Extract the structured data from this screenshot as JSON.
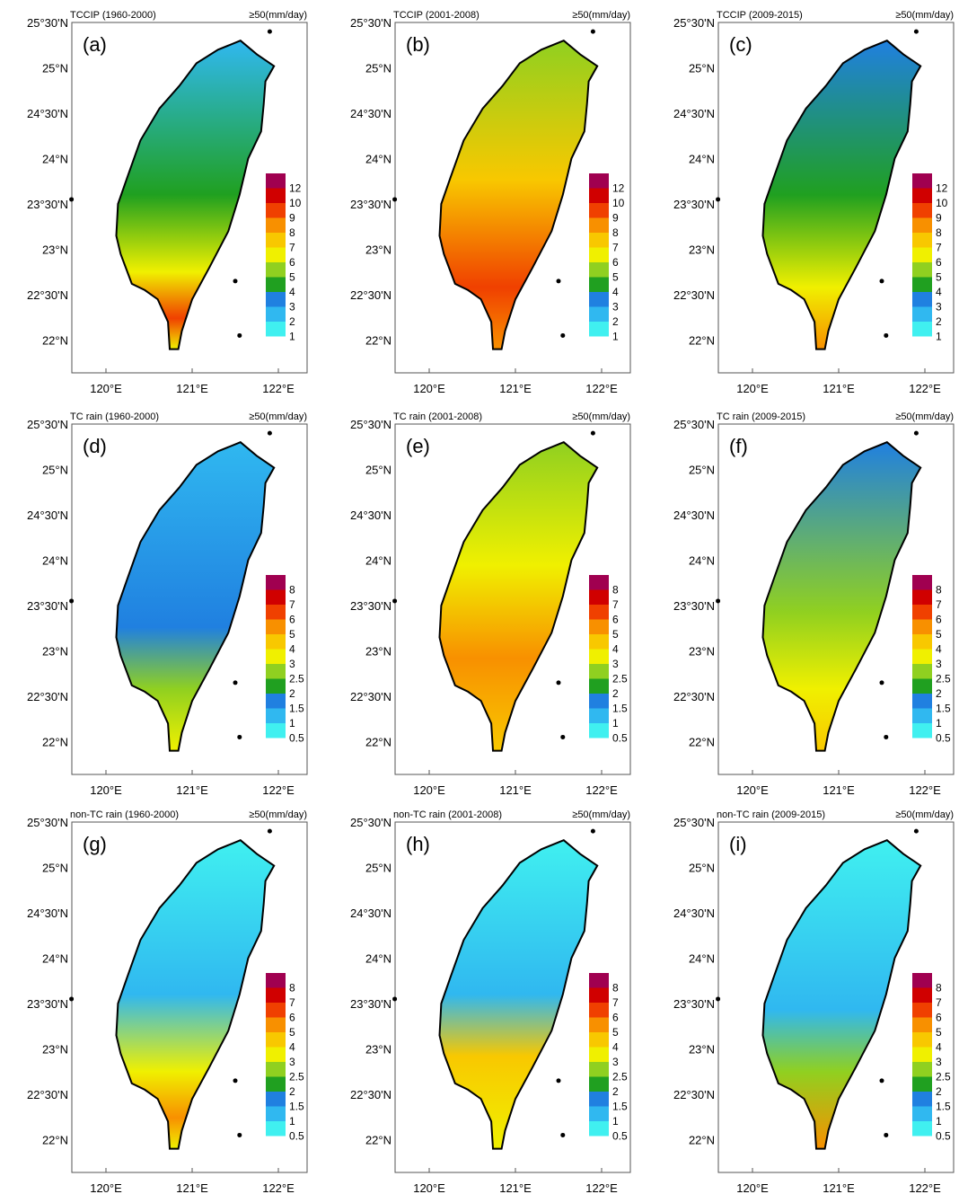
{
  "lat_labels": [
    "25°30'N",
    "25°N",
    "24°30'N",
    "24°N",
    "23°30'N",
    "23°N",
    "22°30'N",
    "22°N"
  ],
  "lon_labels": [
    "120°E",
    "121°E",
    "122°E"
  ],
  "rows": [
    {
      "colorbar": {
        "levels": [
          1,
          2,
          3,
          4,
          5,
          6,
          7,
          8,
          9,
          10,
          12
        ],
        "colors": [
          "#ffffff",
          "#40f0f0",
          "#30b8f0",
          "#2080e0",
          "#20a020",
          "#90d020",
          "#f0f000",
          "#f8c800",
          "#f89000",
          "#f04000",
          "#d00000",
          "#a00050"
        ]
      },
      "panels": [
        {
          "label": "(a)",
          "title": "TCCIP (1960-2000)",
          "units": "≥50(mm/day)"
        },
        {
          "label": "(b)",
          "title": "TCCIP (2001-2008)",
          "units": "≥50(mm/day)"
        },
        {
          "label": "(c)",
          "title": "TCCIP (2009-2015)",
          "units": "≥50(mm/day)"
        }
      ]
    },
    {
      "colorbar": {
        "levels": [
          0.5,
          1,
          1.5,
          2,
          2.5,
          3,
          4,
          5,
          6,
          7,
          8
        ],
        "colors": [
          "#ffffff",
          "#40f0f0",
          "#30b8f0",
          "#2080e0",
          "#20a020",
          "#90d020",
          "#f0f000",
          "#f8c800",
          "#f89000",
          "#f04000",
          "#d00000",
          "#a00050"
        ]
      },
      "panels": [
        {
          "label": "(d)",
          "title": "TC rain (1960-2000)",
          "units": "≥50(mm/day)"
        },
        {
          "label": "(e)",
          "title": "TC rain (2001-2008)",
          "units": "≥50(mm/day)"
        },
        {
          "label": "(f)",
          "title": "TC rain (2009-2015)",
          "units": "≥50(mm/day)"
        }
      ]
    },
    {
      "colorbar": {
        "levels": [
          0.5,
          1,
          1.5,
          2,
          2.5,
          3,
          4,
          5,
          6,
          7,
          8
        ],
        "colors": [
          "#ffffff",
          "#40f0f0",
          "#30b8f0",
          "#2080e0",
          "#20a020",
          "#90d020",
          "#f0f000",
          "#f8c800",
          "#f89000",
          "#f04000",
          "#d00000",
          "#a00050"
        ]
      },
      "panels": [
        {
          "label": "(g)",
          "title": "non-TC rain (1960-2000)",
          "units": "≥50(mm/day)"
        },
        {
          "label": "(h)",
          "title": "non-TC rain (2001-2008)",
          "units": "≥50(mm/day)"
        },
        {
          "label": "(i)",
          "title": "non-TC rain (2009-2015)",
          "units": "≥50(mm/day)"
        }
      ]
    }
  ]
}
